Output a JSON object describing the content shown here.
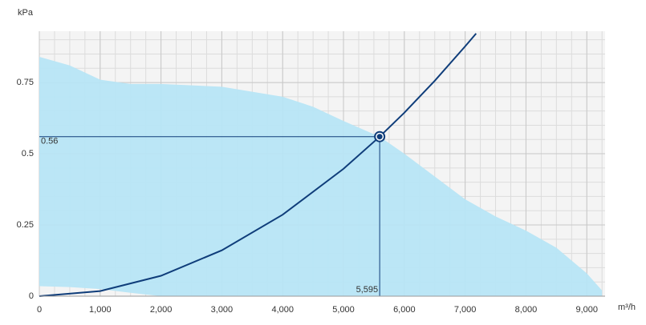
{
  "chart_data": {
    "type": "fan_curve",
    "y_axis_label": "kPa",
    "x_axis_label": "m³/h",
    "xlim": [
      0,
      9300
    ],
    "ylim": [
      0,
      0.93
    ],
    "xticks": [
      0,
      {
        "value": 1000,
        "label": "1,000"
      },
      {
        "value": 2000,
        "label": "2,000"
      },
      {
        "value": 3000,
        "label": "3,000"
      },
      {
        "value": 4000,
        "label": "4,000"
      },
      {
        "value": 5000,
        "label": "5,000"
      },
      {
        "value": 6000,
        "label": "6,000"
      },
      {
        "value": 7000,
        "label": "7,000"
      },
      {
        "value": 8000,
        "label": "8,000"
      },
      {
        "value": 9000,
        "label": "9,000"
      }
    ],
    "yticks": [
      0,
      0.25,
      0.5,
      0.75
    ],
    "grid": true,
    "area": {
      "color": "#b7e5f5",
      "x": [
        0,
        500,
        1000,
        1500,
        2000,
        3000,
        4000,
        4500,
        5000,
        5595,
        6000,
        6500,
        7000,
        7500,
        8000,
        8500,
        9000,
        9250
      ],
      "upper": [
        0.84,
        0.81,
        0.76,
        0.745,
        0.745,
        0.735,
        0.7,
        0.665,
        0.615,
        0.56,
        0.5,
        0.42,
        0.34,
        0.28,
        0.23,
        0.17,
        0.08,
        0.02
      ],
      "lower": [
        0.035,
        0.032,
        0.025,
        0.012,
        0,
        0,
        0,
        0,
        0,
        0,
        0,
        0,
        0,
        0,
        0,
        0,
        0,
        0
      ]
    },
    "series": [
      {
        "color": "#0f3d7a",
        "x": [
          0,
          1000,
          2000,
          3000,
          4000,
          5000,
          5595,
          6000,
          6500,
          7000,
          7180
        ],
        "values": [
          0,
          0.0179,
          0.0716,
          0.161,
          0.286,
          0.447,
          0.56,
          0.644,
          0.756,
          0.877,
          0.922
        ]
      }
    ],
    "operating_point": {
      "x": 5595,
      "y": 0.56,
      "x_label": "5,595",
      "y_label": "0.56",
      "color": "#0f3d7a"
    }
  }
}
